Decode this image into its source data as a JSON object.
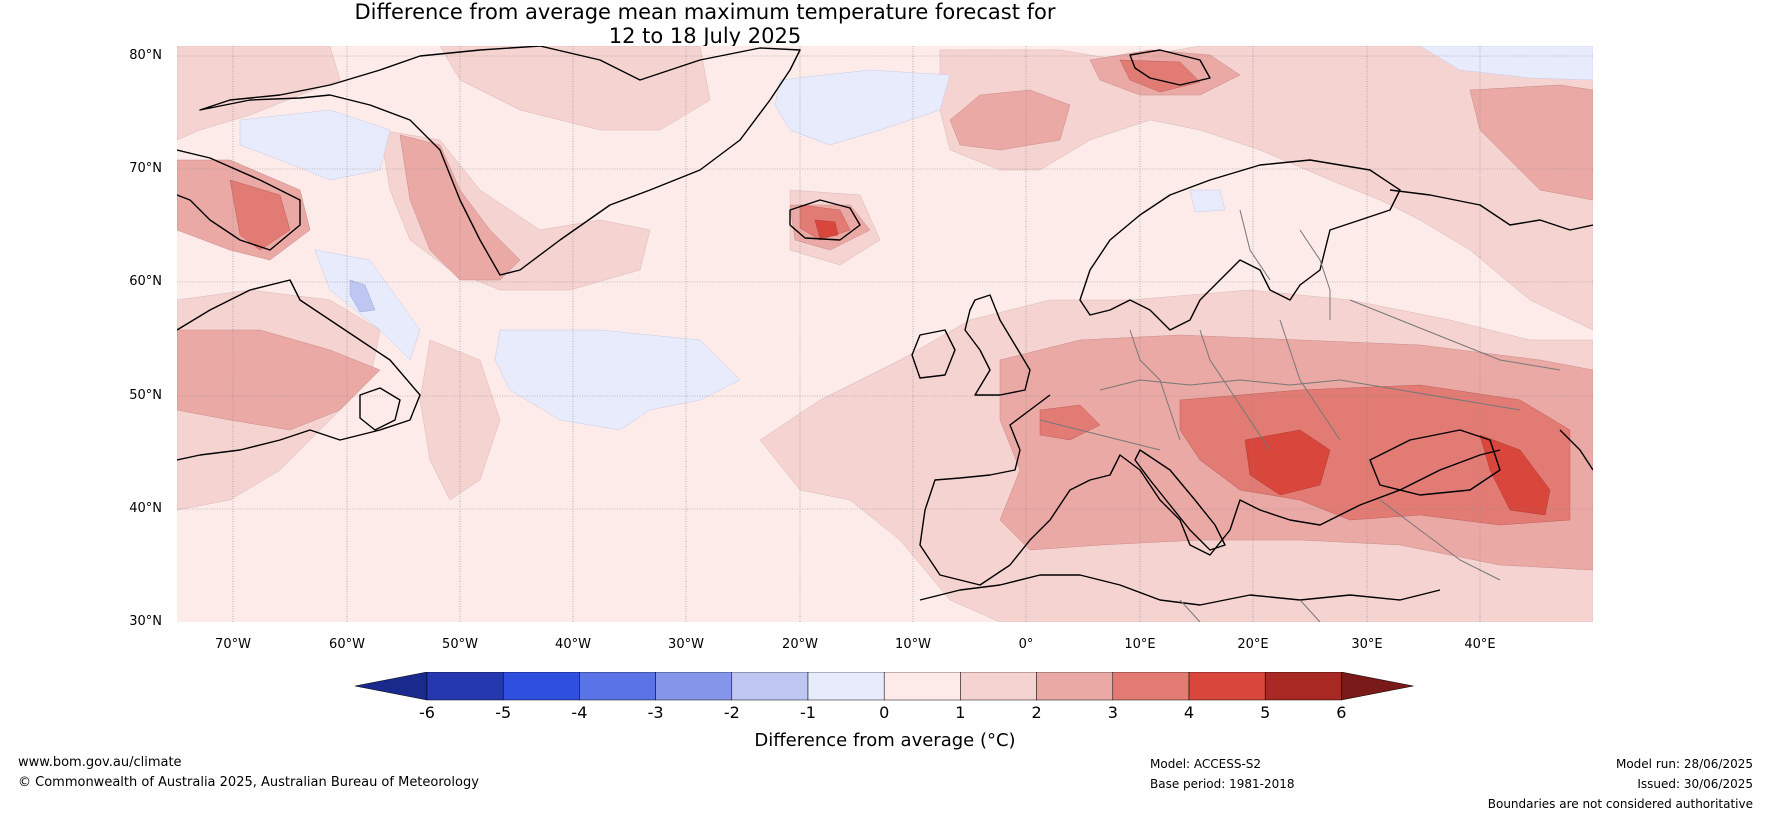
{
  "title": {
    "line1": "Difference from average mean maximum temperature forecast for",
    "line2": "12 to 18 July 2025"
  },
  "map": {
    "region": "North Atlantic and Europe",
    "projection": "equirectangular",
    "lon_range": [
      -75,
      50
    ],
    "lat_range": [
      30,
      81
    ],
    "graticule": true,
    "lat_ticks": [
      "80°N",
      "70°N",
      "60°N",
      "50°N",
      "40°N",
      "30°N"
    ],
    "lon_ticks": [
      "70°W",
      "60°W",
      "50°W",
      "40°W",
      "30°W",
      "20°W",
      "10°W",
      "0°",
      "10°E",
      "20°E",
      "30°E",
      "40°E"
    ]
  },
  "colorbar": {
    "tick_labels": [
      "-6",
      "-5",
      "-4",
      "-3",
      "-2",
      "-1",
      "0",
      "1",
      "2",
      "3",
      "4",
      "5",
      "6"
    ],
    "bins": [
      {
        "range": "<-6",
        "color": "#1a2a8c"
      },
      {
        "range": "-6 to -5",
        "color": "#2638b0"
      },
      {
        "range": "-5 to -4",
        "color": "#2f4fe0"
      },
      {
        "range": "-4 to -3",
        "color": "#5a74e8"
      },
      {
        "range": "-3 to -2",
        "color": "#8596ea"
      },
      {
        "range": "-2 to -1",
        "color": "#bec6f2"
      },
      {
        "range": "-1 to 0",
        "color": "#e8ebfb"
      },
      {
        "range": "0 to 1",
        "color": "#fcebe8"
      },
      {
        "range": "1 to 2",
        "color": "#f5d3d1"
      },
      {
        "range": "2 to 3",
        "color": "#eba9a6"
      },
      {
        "range": "3 to 4",
        "color": "#e17b74"
      },
      {
        "range": "4 to 5",
        "color": "#d8463c"
      },
      {
        "range": "5 to 6",
        "color": "#a82824"
      },
      {
        "range": ">6",
        "color": "#7a1a18"
      }
    ],
    "label": "Difference from average (°C)"
  },
  "footer": {
    "website": "www.bom.gov.au/climate",
    "copyright": "© Commonwealth of Australia 2025, Australian Bureau of Meteorology",
    "model": "Model: ACCESS-S2",
    "base_period": "Base period: 1981-2018",
    "model_run": "Model run: 28/06/2025",
    "issued": "Issued: 30/06/2025",
    "disclaimer": "Boundaries are not considered authoritative"
  }
}
